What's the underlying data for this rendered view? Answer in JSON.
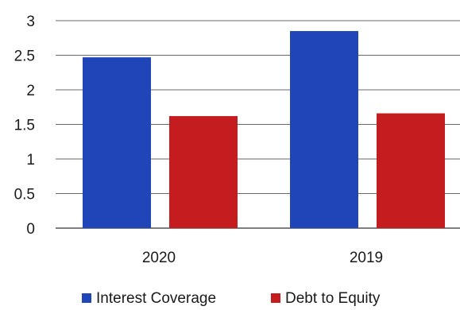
{
  "chart_data": {
    "type": "bar",
    "title": "",
    "xlabel": "",
    "ylabel": "",
    "categories": [
      "2020",
      "2019"
    ],
    "series": [
      {
        "name": "Interest Coverage",
        "color": "#1f45b8",
        "values": [
          2.47,
          2.85
        ]
      },
      {
        "name": "Debt to Equity",
        "color": "#c41c1f",
        "values": [
          1.62,
          1.66
        ]
      }
    ],
    "ylim": [
      0,
      3
    ],
    "yticks": [
      "0",
      "0.5",
      "1",
      "1.5",
      "2",
      "2.5",
      "3"
    ],
    "grid": true,
    "legend_position": "bottom"
  }
}
